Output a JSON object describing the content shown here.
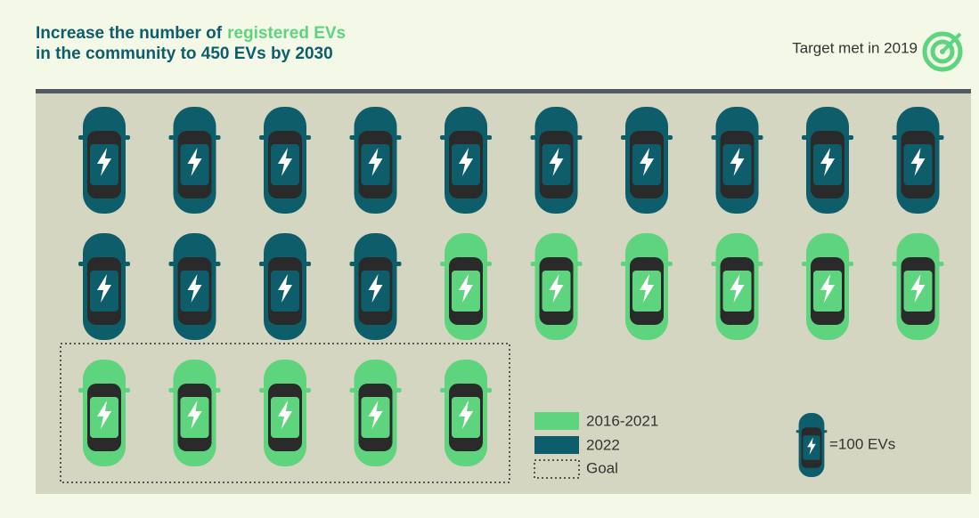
{
  "chart_data": {
    "type": "pictogram",
    "title": {
      "start": "Increase the number of",
      "highlight": "registered EVs",
      "line2": "in the community to 450 EVs by 2030"
    },
    "note": "Target met in 2019",
    "unit_label": "=100 EVs",
    "columns": 10,
    "series": [
      {
        "name": "2022",
        "color": "#0e5d6b",
        "values": [
          14
        ]
      },
      {
        "name": "2016-2021",
        "color": "#5ed47f",
        "values": [
          11
        ]
      }
    ],
    "goal": {
      "name": "Goal",
      "values": [
        5
      ]
    }
  }
}
